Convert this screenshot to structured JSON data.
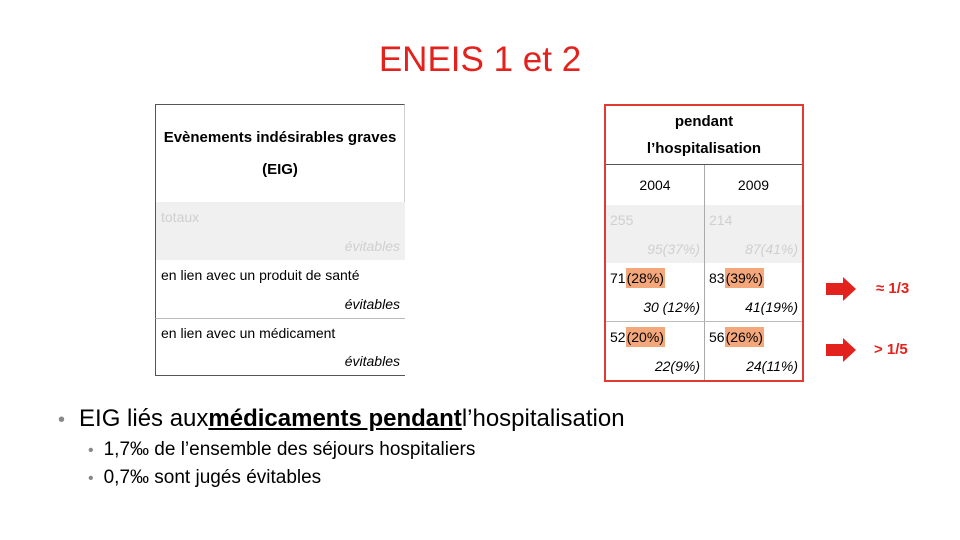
{
  "title": "ENEIS 1 et 2",
  "left_table": {
    "header": "Evènements indésirables graves (EIG)",
    "rows": [
      {
        "label": "totaux",
        "sub": "évitables"
      },
      {
        "label": "en lien avec un produit de santé",
        "sub": "évitables"
      },
      {
        "label": "en lien avec un médicament",
        "sub": "évitables"
      }
    ]
  },
  "right_table": {
    "header_line1": "pendant",
    "header_line2": "l’hospitalisation",
    "years": [
      "2004",
      "2009"
    ],
    "rows": [
      {
        "a": "255",
        "a_pct": "",
        "b": "214",
        "b_pct": "",
        "a_sub": "95(37%)",
        "b_sub": "87(41%)"
      },
      {
        "a": "71",
        "a_pct": "(28%)",
        "b": "83",
        "b_pct": "(39%)",
        "a_sub": "30 (12%)",
        "b_sub": "41(19%)"
      },
      {
        "a": "52",
        "a_pct": "(20%)",
        "b": "56",
        "b_pct": "(26%)",
        "a_sub": "22(9%)",
        "b_sub": "24(11%)"
      }
    ]
  },
  "annotations": {
    "first": "≈ 1/3",
    "second": "> 1/5"
  },
  "bullets": {
    "main_pre": "EIG liés aux ",
    "main_em": "médicaments pendant ",
    "main_post": "l’hospitalisation",
    "sub": [
      "1,7‰ de l’ensemble des séjours hospitaliers",
      "0,7‰ sont jugés évitables"
    ]
  },
  "colors": {
    "accent": "#e3221d",
    "highlight": "#f4a77a"
  }
}
